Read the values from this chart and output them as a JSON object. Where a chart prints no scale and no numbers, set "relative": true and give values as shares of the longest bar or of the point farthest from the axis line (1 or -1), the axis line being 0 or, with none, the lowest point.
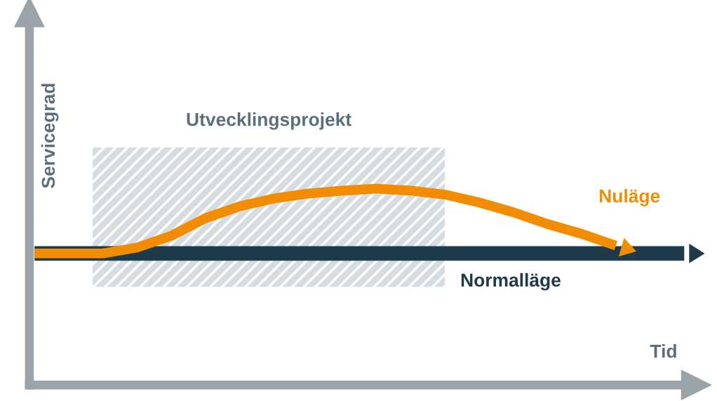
{
  "chart_data": {
    "type": "line",
    "relative": true,
    "xlabel": "Tid",
    "ylabel": "Servicegrad",
    "categories": [
      null,
      null,
      null,
      null,
      null,
      null,
      null,
      null,
      null,
      null,
      null,
      null,
      null,
      null,
      null,
      null,
      null,
      null,
      null,
      null
    ],
    "series": [
      {
        "name": "Normalläge",
        "color": "#1f3a4a",
        "values": [
          0.67,
          0.67,
          0.67,
          0.67,
          0.67,
          0.67,
          0.67,
          0.67,
          0.67,
          0.67,
          0.67,
          0.67,
          0.67,
          0.67,
          0.67,
          0.67,
          0.67,
          0.67,
          0.67,
          0.67
        ]
      },
      {
        "name": "Nuläge",
        "color": "#f28c00",
        "values": [
          0.67,
          0.67,
          0.67,
          0.7,
          0.76,
          0.85,
          0.91,
          0.95,
          0.975,
          0.99,
          1.0,
          0.99,
          0.97,
          0.93,
          0.88,
          0.82,
          0.77,
          0.71,
          null,
          null
        ]
      }
    ],
    "annotations": [
      "Utvecklingsprojekt"
    ],
    "marker": "none",
    "line_style": "solid"
  }
}
